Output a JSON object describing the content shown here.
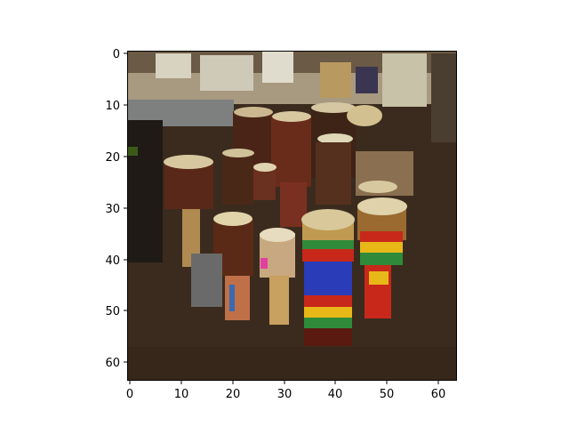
{
  "figure": {
    "x_ticks": [
      "0",
      "10",
      "20",
      "30",
      "40",
      "50",
      "60"
    ],
    "y_ticks": [
      "0",
      "10",
      "20",
      "30",
      "40",
      "50",
      "60"
    ],
    "image_description_colors": {
      "background_floor": "#3b2c1f",
      "wall_top": "#c9c1a8",
      "drum_heads": "#d8c9a0",
      "drum_body_dark": "#5a2a18",
      "drum_multicolor_red": "#c8281a",
      "drum_multicolor_blue": "#2a3cb8",
      "drum_multicolor_yellow": "#e8b818",
      "drum_multicolor_green": "#2f8a3a"
    }
  }
}
